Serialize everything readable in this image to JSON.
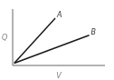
{
  "chart_data": {
    "type": "line",
    "xlabel": "V",
    "ylabel": "Q",
    "series": [
      {
        "name": "A",
        "color": "#1a1a1a",
        "x": [
          0,
          0.52
        ],
        "values": [
          0,
          1.0
        ]
      },
      {
        "name": "B",
        "color": "#1a1a1a",
        "x": [
          0,
          0.95
        ],
        "values": [
          0,
          0.62
        ]
      }
    ],
    "xlim": [
      -0.02,
      1.15
    ],
    "ylim": [
      -0.05,
      1.2
    ],
    "xticks": [],
    "yticks": [],
    "tick_labels": false
  }
}
